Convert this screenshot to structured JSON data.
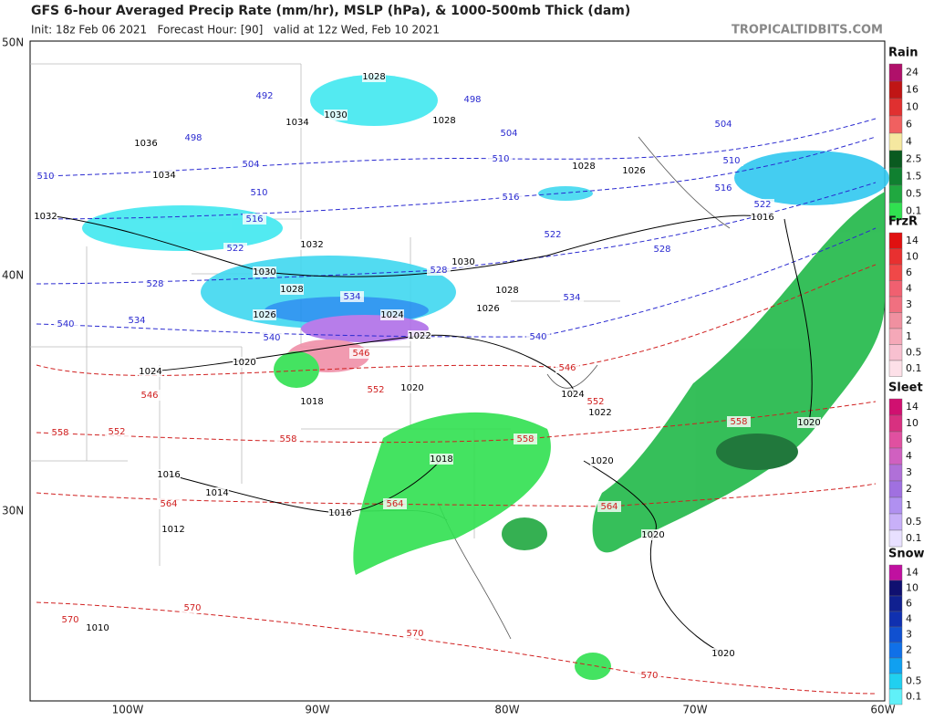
{
  "header": {
    "title": "GFS 6-hour Averaged Precip Rate (mm/hr), MSLP (hPa), & 1000-500mb Thick (dam)",
    "subtitle": "Init: 18z Feb 06 2021   Forecast Hour: [90]   valid at 12z Wed, Feb 10 2021",
    "site": "TROPICALTIDBITS.COM"
  },
  "map": {
    "lat_labels": [
      "50N",
      "40N",
      "30N"
    ],
    "lon_labels": [
      "100W",
      "90W",
      "80W",
      "70W",
      "60W"
    ],
    "isobar_color": "#000000",
    "cold_thickness_color": "#2a2ad0",
    "warm_thickness_color": "#d02020",
    "isobar_labels": [
      1028,
      1034,
      1030,
      1028,
      1036,
      1034,
      1032,
      1032,
      1030,
      1028,
      1030,
      1028,
      1026,
      1024,
      1026,
      1022,
      1024,
      1020,
      1018,
      1020,
      1024,
      1022,
      1018,
      1016,
      1014,
      1016,
      1012,
      1010,
      1028,
      1026,
      1016,
      1020,
      1020,
      1020,
      1020
    ],
    "cold_thickness_labels": [
      492,
      498,
      498,
      504,
      504,
      504,
      510,
      510,
      510,
      510,
      516,
      516,
      516,
      522,
      522,
      522,
      528,
      528,
      528,
      534,
      534,
      534,
      540,
      540,
      540
    ],
    "warm_thickness_labels": [
      546,
      546,
      546,
      552,
      552,
      552,
      558,
      558,
      558,
      558,
      564,
      564,
      564,
      570,
      570,
      570,
      570
    ]
  },
  "legend": [
    {
      "title": "Rain",
      "levels": [
        24,
        16,
        10,
        6,
        4,
        2.5,
        1.5,
        0.5,
        0.1
      ],
      "colors": [
        "#b0106a",
        "#c01515",
        "#e03030",
        "#f06060",
        "#f5e8a0",
        "#0a5a20",
        "#108030",
        "#20a840",
        "#30e050"
      ]
    },
    {
      "title": "FrzR",
      "levels": [
        14,
        10,
        6,
        4,
        3,
        2,
        1,
        0.5,
        0.1
      ],
      "colors": [
        "#e01010",
        "#e83030",
        "#f04848",
        "#f06070",
        "#f07080",
        "#f090a0",
        "#f5a8b8",
        "#f8c0d0",
        "#fde0e8"
      ]
    },
    {
      "title": "Sleet",
      "levels": [
        14,
        10,
        6,
        4,
        3,
        2,
        1,
        0.5,
        0.1
      ],
      "colors": [
        "#d01070",
        "#d83080",
        "#e050a0",
        "#d060c0",
        "#b070d8",
        "#a070e0",
        "#b090f0",
        "#c8b0f8",
        "#e8e0ff"
      ]
    },
    {
      "title": "Snow",
      "levels": [
        14,
        10,
        6,
        4,
        3,
        2,
        1,
        0.5,
        0.1
      ],
      "colors": [
        "#c010a0",
        "#101070",
        "#102090",
        "#1030b0",
        "#1050d0",
        "#1070e8",
        "#10a0f0",
        "#20d0f0",
        "#60f0f8"
      ]
    }
  ]
}
